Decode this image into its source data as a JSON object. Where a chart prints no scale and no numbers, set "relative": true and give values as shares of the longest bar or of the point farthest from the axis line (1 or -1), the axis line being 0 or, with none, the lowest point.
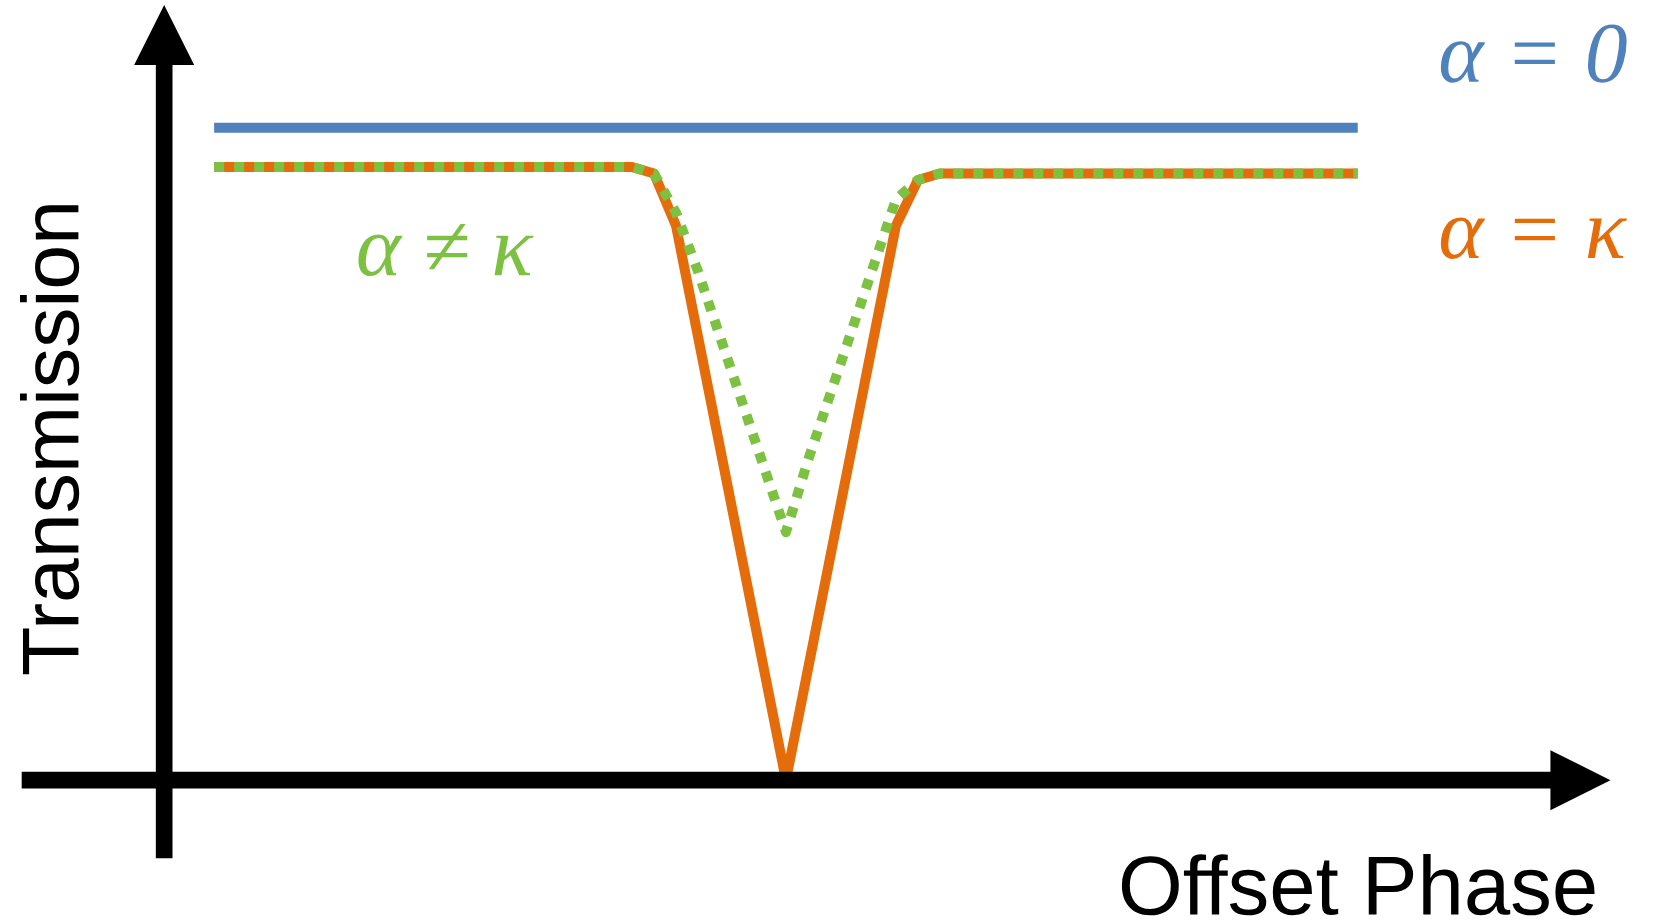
{
  "chart_data": {
    "type": "line",
    "relative": true,
    "xlabel": "Offset Phase",
    "ylabel": "Transmission",
    "categories": [
      null,
      null,
      null,
      null,
      null,
      null,
      null,
      null,
      null,
      null,
      null,
      null,
      null,
      null,
      null,
      null,
      null,
      null,
      null,
      null,
      null,
      null,
      null,
      null,
      null,
      null,
      null,
      null,
      null,
      null,
      null,
      null,
      null,
      null,
      null,
      null,
      null,
      null,
      null,
      null,
      null,
      null,
      null,
      null,
      null,
      null,
      null,
      null,
      null,
      null,
      null,
      null,
      null
    ],
    "series": [
      {
        "name": "α = 0",
        "color": "#4f81bd",
        "values": [
          1,
          1,
          1,
          1,
          1,
          1,
          1,
          1,
          1,
          1,
          1,
          1,
          1,
          1,
          1,
          1,
          1,
          1,
          1,
          1,
          1,
          1,
          1,
          1,
          1,
          1,
          1,
          1,
          1,
          1,
          1,
          1,
          1,
          1,
          1,
          1,
          1,
          1,
          1,
          1,
          1,
          1,
          1,
          1,
          1,
          1,
          1,
          1,
          1,
          1,
          1,
          1,
          1
        ]
      },
      {
        "name": "α = κ",
        "color": "#e46c0a",
        "values": [
          0.94,
          0.94,
          0.94,
          0.94,
          0.94,
          0.94,
          0.94,
          0.94,
          0.94,
          0.94,
          0.94,
          0.94,
          0.94,
          0.94,
          0.94,
          0.94,
          0.94,
          0.94,
          0.94,
          0.94,
          0.93,
          0.85,
          0.68,
          0.51,
          0.34,
          0.17,
          0,
          0.17,
          0.34,
          0.51,
          0.68,
          0.85,
          0.92,
          0.93,
          0.93,
          0.93,
          0.93,
          0.93,
          0.93,
          0.93,
          0.93,
          0.93,
          0.93,
          0.93,
          0.93,
          0.93,
          0.93,
          0.93,
          0.93,
          0.93,
          0.93,
          0.93,
          0.93
        ]
      },
      {
        "name": "α ≠ κ",
        "color": "#7dc142",
        "line_style": "dotted",
        "values": [
          0.94,
          0.94,
          0.94,
          0.94,
          0.94,
          0.94,
          0.94,
          0.94,
          0.94,
          0.94,
          0.94,
          0.94,
          0.94,
          0.94,
          0.94,
          0.94,
          0.94,
          0.94,
          0.94,
          0.94,
          0.93,
          0.87,
          0.78,
          0.68,
          0.58,
          0.48,
          0.38,
          0.49,
          0.59,
          0.69,
          0.79,
          0.89,
          0.92,
          0.93,
          0.93,
          0.93,
          0.93,
          0.93,
          0.93,
          0.93,
          0.93,
          0.93,
          0.93,
          0.93,
          0.93,
          0.93,
          0.93,
          0.93,
          0.93,
          0.93,
          0.93,
          0.93,
          0.93
        ]
      }
    ]
  }
}
